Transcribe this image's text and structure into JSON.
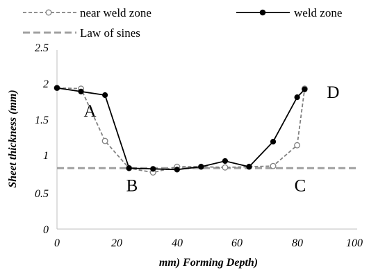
{
  "chart_data": {
    "type": "line",
    "title": "",
    "xlabel": "mm) Forming Depth)",
    "ylabel": "Sheet thickness (mm)",
    "xlim": [
      0,
      100
    ],
    "ylim": [
      0,
      2.5
    ],
    "x_ticks": [
      "0",
      "20",
      "40",
      "60",
      "80",
      "100"
    ],
    "y_ticks": [
      "0",
      "0.5",
      "1",
      "1.5",
      "2",
      "2.5"
    ],
    "grid": false,
    "legend_position": "top-left",
    "series": [
      {
        "name": "near weld zone",
        "style": "dashed-open-markers",
        "color": "#808080",
        "points": [
          [
            0,
            1.97
          ],
          [
            8,
            1.96
          ],
          [
            16,
            1.23
          ],
          [
            24,
            0.85
          ],
          [
            32,
            0.79
          ],
          [
            40,
            0.87
          ],
          [
            48,
            0.87
          ],
          [
            56,
            0.86
          ],
          [
            64,
            0.87
          ],
          [
            72,
            0.88
          ],
          [
            80,
            1.17
          ],
          [
            82.5,
            1.96
          ]
        ]
      },
      {
        "name": "weld zone",
        "style": "solid-filled-markers",
        "color": "#000000",
        "points": [
          [
            0,
            1.97
          ],
          [
            8,
            1.92
          ],
          [
            16,
            1.87
          ],
          [
            24,
            0.85
          ],
          [
            32,
            0.84
          ],
          [
            40,
            0.83
          ],
          [
            48,
            0.87
          ],
          [
            56,
            0.95
          ],
          [
            64,
            0.87
          ],
          [
            72,
            1.22
          ],
          [
            80,
            1.84
          ],
          [
            82.5,
            1.95
          ]
        ]
      },
      {
        "name": "Law of sines",
        "style": "dashed-thick",
        "color": "#a0a0a0",
        "points": [
          [
            0,
            0.85
          ],
          [
            100,
            0.85
          ]
        ]
      }
    ],
    "annotations": [
      {
        "text": "A",
        "x": 11,
        "y": 1.57
      },
      {
        "text": "B",
        "x": 25,
        "y": 0.53
      },
      {
        "text": "C",
        "x": 81,
        "y": 0.53
      },
      {
        "text": "D",
        "x": 92,
        "y": 1.83
      }
    ]
  }
}
